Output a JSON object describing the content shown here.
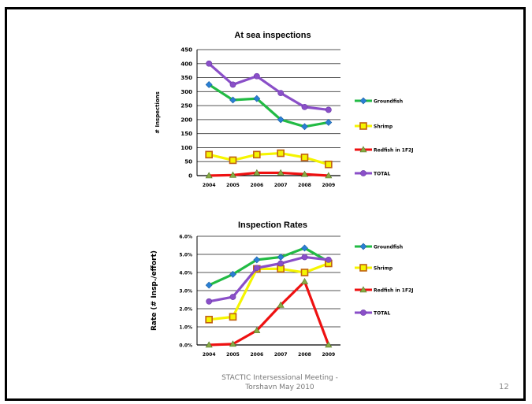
{
  "footer": {
    "line1": "STACTIC Intersessional Meeting -",
    "line2": "Torshavn May 2010"
  },
  "slide_number": "12",
  "colors": {
    "Groundfish": "#22bb44",
    "Shrimp": "#f5f500",
    "Redfish in 1F2J": "#ee1111",
    "TOTAL": "#8a4fc8"
  },
  "chart_data": [
    {
      "type": "line",
      "title": "At  sea inspections",
      "ylabel": "# Inspections",
      "xlabel": "",
      "categories": [
        "2004",
        "2005",
        "2006",
        "2007",
        "2008",
        "2009"
      ],
      "ylim": [
        0,
        450
      ],
      "yticks": [
        "0",
        "50",
        "100",
        "150",
        "200",
        "250",
        "300",
        "350",
        "400",
        "450"
      ],
      "grid": true,
      "legend": "right",
      "series": [
        {
          "name": "Groundfish",
          "values": [
            325,
            270,
            275,
            200,
            175,
            190
          ],
          "marker": "diamond",
          "marker_color": "#2a7fd4"
        },
        {
          "name": "Shrimp",
          "values": [
            75,
            55,
            75,
            80,
            65,
            40
          ],
          "marker": "square",
          "marker_color": "#c06010"
        },
        {
          "name": "Redfish in 1F2J",
          "values": [
            0,
            2,
            10,
            10,
            5,
            0
          ],
          "marker": "triangle",
          "marker_color": "#88aa44"
        },
        {
          "name": "TOTAL",
          "values": [
            400,
            325,
            355,
            295,
            245,
            235
          ],
          "marker": "circle",
          "marker_color": "#8a4fc8"
        }
      ]
    },
    {
      "type": "line",
      "title": "Inspection Rates",
      "ylabel": "Rate (# Insp./effort)",
      "xlabel": "",
      "categories": [
        "2004",
        "2005",
        "2006",
        "2007",
        "2008",
        "2009"
      ],
      "ylim": [
        0,
        6
      ],
      "yticks": [
        "0.0%",
        "1.0%",
        "2.0%",
        "3.0%",
        "4.0%",
        "5.0%",
        "6.0%"
      ],
      "grid": true,
      "legend": "right",
      "series": [
        {
          "name": "Groundfish",
          "values": [
            3.3,
            3.9,
            4.7,
            4.85,
            5.35,
            4.6
          ],
          "marker": "diamond",
          "marker_color": "#2a7fd4"
        },
        {
          "name": "Shrimp",
          "values": [
            1.4,
            1.55,
            4.2,
            4.2,
            4.0,
            4.5
          ],
          "marker": "square",
          "marker_color": "#c06010"
        },
        {
          "name": "Redfish in 1F2J",
          "values": [
            0,
            0.05,
            0.8,
            2.2,
            3.5,
            0
          ],
          "marker": "triangle",
          "marker_color": "#88aa44"
        },
        {
          "name": "TOTAL",
          "values": [
            2.4,
            2.65,
            4.25,
            4.5,
            4.85,
            4.7
          ],
          "marker": "circle",
          "marker_color": "#8a4fc8"
        }
      ]
    }
  ]
}
